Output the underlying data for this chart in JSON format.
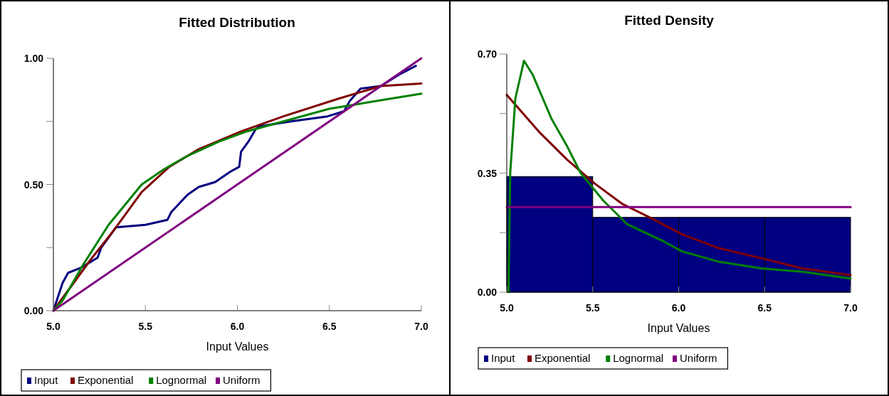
{
  "chart_data": [
    {
      "type": "line",
      "title": "Fitted Distribution",
      "xlabel": "Input Values",
      "xlim": [
        5.0,
        7.0
      ],
      "xticks": [
        {
          "value": 5,
          "label": "5.0"
        },
        {
          "value": 5.5,
          "label": "5.5"
        },
        {
          "value": 6,
          "label": "6.0"
        },
        {
          "value": 6.5,
          "label": "6.5"
        },
        {
          "value": 7,
          "label": "7.0"
        }
      ],
      "ylim": [
        0,
        1
      ],
      "yticks": [
        {
          "value": 0,
          "label": "0.00"
        },
        {
          "value": 0.25,
          "label": null
        },
        {
          "value": 0.5,
          "label": "0.50"
        },
        {
          "value": 0.75,
          "label": null
        },
        {
          "value": 1,
          "label": "1.00"
        }
      ],
      "legend": "bottom left",
      "series": [
        {
          "name": "Input",
          "color": "#000080",
          "x": [
            5.0,
            5.05,
            5.08,
            5.15,
            5.24,
            5.26,
            5.34,
            5.5,
            5.62,
            5.64,
            5.73,
            5.79,
            5.88,
            5.96,
            6.01,
            6.02,
            6.06,
            6.1,
            6.12,
            6.29,
            6.49,
            6.58,
            6.61,
            6.67,
            6.78,
            6.89,
            6.97
          ],
          "values": [
            0,
            0.11,
            0.15,
            0.17,
            0.21,
            0.25,
            0.33,
            0.34,
            0.36,
            0.39,
            0.46,
            0.49,
            0.51,
            0.55,
            0.57,
            0.63,
            0.67,
            0.72,
            0.73,
            0.75,
            0.77,
            0.79,
            0.83,
            0.88,
            0.89,
            0.94,
            0.97
          ]
        },
        {
          "name": "Exponential",
          "color": "#800000",
          "x": [
            5.0,
            5.1,
            5.2,
            5.33,
            5.48,
            5.63,
            5.79,
            6.02,
            6.25,
            6.55,
            6.78,
            7.0
          ],
          "values": [
            0,
            0.1,
            0.2,
            0.32,
            0.47,
            0.57,
            0.64,
            0.71,
            0.77,
            0.84,
            0.89,
            0.9
          ]
        },
        {
          "name": "Lognormal",
          "color": "#008000",
          "x": [
            5.0,
            5.05,
            5.16,
            5.3,
            5.48,
            5.6,
            5.72,
            5.9,
            6.05,
            6.25,
            6.5,
            6.75,
            7.0
          ],
          "values": [
            0,
            0.04,
            0.18,
            0.34,
            0.5,
            0.56,
            0.61,
            0.67,
            0.71,
            0.75,
            0.8,
            0.83,
            0.86
          ]
        },
        {
          "name": "Uniform",
          "color": "#800080",
          "x": [
            5.0,
            6.0,
            7.0
          ],
          "values": [
            0,
            0.5,
            1.0
          ]
        }
      ]
    },
    {
      "type": "line",
      "title": "Fitted Density",
      "xlabel": "Input Values",
      "xlim": [
        5.0,
        7.0
      ],
      "xticks": [
        {
          "value": 5,
          "label": "5.0"
        },
        {
          "value": 5.5,
          "label": "5.5"
        },
        {
          "value": 6,
          "label": "6.0"
        },
        {
          "value": 6.5,
          "label": "6.5"
        },
        {
          "value": 7,
          "label": "7.0"
        }
      ],
      "ylim": [
        0,
        0.7
      ],
      "yticks": [
        {
          "value": 0,
          "label": "0.00"
        },
        {
          "value": 0.175,
          "label": null
        },
        {
          "value": 0.35,
          "label": "0.35"
        },
        {
          "value": 0.525,
          "label": null
        },
        {
          "value": 0.7,
          "label": "0.70"
        }
      ],
      "legend": "bottom left",
      "series": [
        {
          "name": "Input",
          "type": "histogram",
          "color": "#000080",
          "bins": [
            5.0,
            5.5,
            6.0,
            6.5,
            7.0
          ],
          "values": [
            0.34,
            0.22,
            0.22,
            0.22
          ]
        },
        {
          "name": "Exponential",
          "color": "#800000",
          "x": [
            5.0,
            5.19,
            5.35,
            5.51,
            5.67,
            5.83,
            6.02,
            6.23,
            6.48,
            6.72,
            7.0
          ],
          "values": [
            0.58,
            0.47,
            0.39,
            0.32,
            0.26,
            0.22,
            0.17,
            0.13,
            0.1,
            0.07,
            0.05
          ]
        },
        {
          "name": "Lognormal",
          "color": "#008000",
          "x": [
            5.01,
            5.02,
            5.05,
            5.1,
            5.15,
            5.26,
            5.35,
            5.43,
            5.56,
            5.7,
            5.91,
            6.02,
            6.23,
            6.48,
            6.72,
            7.0
          ],
          "values": [
            0,
            0.35,
            0.57,
            0.68,
            0.64,
            0.51,
            0.43,
            0.35,
            0.27,
            0.2,
            0.15,
            0.12,
            0.09,
            0.07,
            0.06,
            0.04
          ]
        },
        {
          "name": "Uniform",
          "color": "#800080",
          "x": [
            5.0,
            7.0
          ],
          "values": [
            0.25,
            0.25
          ]
        }
      ]
    }
  ]
}
